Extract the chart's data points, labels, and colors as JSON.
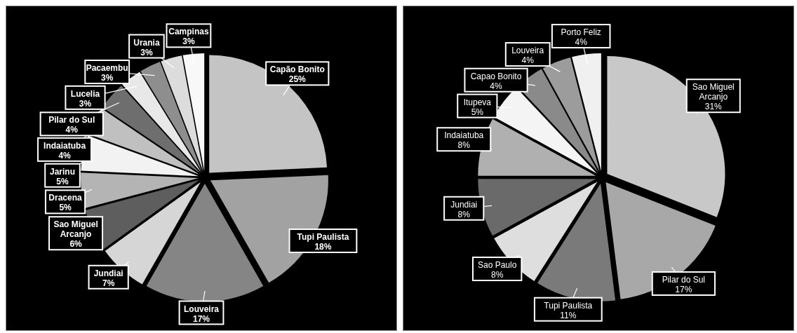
{
  "chart_data": [
    {
      "type": "pie",
      "categories": [
        "Capão Bonito",
        "Tupi Paulista",
        "Louveira",
        "Jundiai",
        "Sao Miguel Arcanjo",
        "Dracena",
        "Jarinu",
        "Indaiatuba",
        "Pilar do Sul",
        "Lucelia",
        "Pacaembu",
        "Urania",
        "Campinas"
      ],
      "values": [
        25,
        18,
        17,
        7,
        6,
        5,
        5,
        4,
        4,
        3,
        3,
        3,
        3
      ],
      "colors": [
        "#c4c4c4",
        "#a2a2a2",
        "#858585",
        "#d6d6d6",
        "#5e5e5e",
        "#b4b4b4",
        "#f2f2f2",
        "#c0c0c0",
        "#6e6e6e",
        "#e8e8e8",
        "#8e8e8e",
        "#dcdcdc",
        "#f8f8f8"
      ],
      "value_labels": [
        "25%",
        "18%",
        "17%",
        "7%",
        "6%",
        "5%",
        "5%",
        "4%",
        "4%",
        "3%",
        "3%",
        "3%",
        "3%"
      ],
      "legend": false
    },
    {
      "type": "pie",
      "categories": [
        "Sao Miguel Arcanjo",
        "Pilar do Sul",
        "Tupi Paulista",
        "Sao Paulo",
        "Jundiai",
        "Indaiatuba",
        "Itupeva",
        "Capao Bonito",
        "Louveira",
        "Porto Feliz"
      ],
      "values": [
        31,
        17,
        11,
        8,
        8,
        8,
        5,
        4,
        4,
        4
      ],
      "colors": [
        "#c8c8c8",
        "#a8a8a8",
        "#7a7a7a",
        "#dedede",
        "#6a6a6a",
        "#b0b0b0",
        "#f4f4f4",
        "#8a8a8a",
        "#9c9c9c",
        "#f0f0f0"
      ],
      "value_labels": [
        "31%",
        "17%",
        "11%",
        "8%",
        "8%",
        "8%",
        "5%",
        "4%",
        "4%",
        "4%"
      ],
      "legend": false
    }
  ]
}
